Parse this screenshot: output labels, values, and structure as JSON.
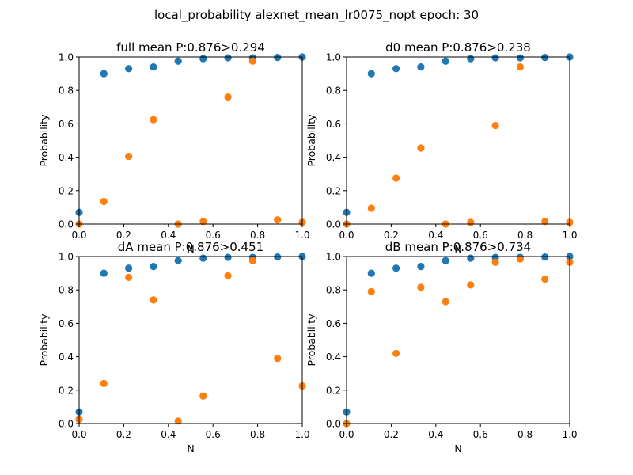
{
  "figure": {
    "suptitle": "local_probability alexnet_mean_lr0075_nopt  epoch: 30",
    "colors": {
      "series_1": "#1f77b4",
      "series_2": "#ff7f0e"
    }
  },
  "chart_data": [
    {
      "type": "scatter",
      "title": "full  mean P:0.876>0.294",
      "xlabel": "N",
      "ylabel": "Probability",
      "xlim": [
        0,
        1
      ],
      "ylim": [
        0,
        1
      ],
      "xticks": [
        "0.0",
        "0.2",
        "0.4",
        "0.6",
        "0.8",
        "1.0"
      ],
      "yticks": [
        "0.0",
        "0.2",
        "0.4",
        "0.6",
        "0.8",
        "1.0"
      ],
      "grid": false,
      "x": [
        0.0,
        0.111,
        0.222,
        0.333,
        0.444,
        0.556,
        0.667,
        0.778,
        0.889,
        1.0
      ],
      "series": [
        {
          "values": [
            0.07,
            0.9,
            0.93,
            0.94,
            0.975,
            0.99,
            0.995,
            0.995,
            0.997,
            1.0
          ]
        },
        {
          "values": [
            0.0,
            0.135,
            0.405,
            0.625,
            0.0,
            0.015,
            0.76,
            0.975,
            0.025,
            0.01
          ]
        }
      ]
    },
    {
      "type": "scatter",
      "title": "d0  mean P:0.876>0.238",
      "xlabel": "N",
      "ylabel": "Probability",
      "xlim": [
        0,
        1
      ],
      "ylim": [
        0,
        1
      ],
      "xticks": [
        "0.0",
        "0.2",
        "0.4",
        "0.6",
        "0.8",
        "1.0"
      ],
      "yticks": [
        "0.0",
        "0.2",
        "0.4",
        "0.6",
        "0.8",
        "1.0"
      ],
      "grid": false,
      "x": [
        0.0,
        0.111,
        0.222,
        0.333,
        0.444,
        0.556,
        0.667,
        0.778,
        0.889,
        1.0
      ],
      "series": [
        {
          "values": [
            0.07,
            0.9,
            0.93,
            0.94,
            0.975,
            0.99,
            0.995,
            0.995,
            0.997,
            1.0
          ]
        },
        {
          "values": [
            0.0,
            0.095,
            0.275,
            0.455,
            0.0,
            0.01,
            0.59,
            0.94,
            0.015,
            0.01
          ]
        }
      ]
    },
    {
      "type": "scatter",
      "title": "dA  mean P:0.876>0.451",
      "xlabel": "N",
      "ylabel": "Probability",
      "xlim": [
        0,
        1
      ],
      "ylim": [
        0,
        1
      ],
      "xticks": [
        "0.0",
        "0.2",
        "0.4",
        "0.6",
        "0.8",
        "1.0"
      ],
      "yticks": [
        "0.0",
        "0.2",
        "0.4",
        "0.6",
        "0.8",
        "1.0"
      ],
      "grid": false,
      "x": [
        0.0,
        0.111,
        0.222,
        0.333,
        0.444,
        0.556,
        0.667,
        0.778,
        0.889,
        1.0
      ],
      "series": [
        {
          "values": [
            0.07,
            0.9,
            0.93,
            0.94,
            0.975,
            0.99,
            0.995,
            0.995,
            0.997,
            1.0
          ]
        },
        {
          "values": [
            0.025,
            0.24,
            0.875,
            0.74,
            0.015,
            0.165,
            0.885,
            0.975,
            0.39,
            0.225
          ]
        }
      ]
    },
    {
      "type": "scatter",
      "title": "dB  mean P:0.876>0.734",
      "xlabel": "N",
      "ylabel": "Probability",
      "xlim": [
        0,
        1
      ],
      "ylim": [
        0,
        1
      ],
      "xticks": [
        "0.0",
        "0.2",
        "0.4",
        "0.6",
        "0.8",
        "1.0"
      ],
      "yticks": [
        "0.0",
        "0.2",
        "0.4",
        "0.6",
        "0.8",
        "1.0"
      ],
      "grid": false,
      "x": [
        0.0,
        0.111,
        0.222,
        0.333,
        0.444,
        0.556,
        0.667,
        0.778,
        0.889,
        1.0
      ],
      "series": [
        {
          "values": [
            0.07,
            0.9,
            0.93,
            0.94,
            0.975,
            0.99,
            0.995,
            0.995,
            0.997,
            1.0
          ]
        },
        {
          "values": [
            0.0,
            0.79,
            0.42,
            0.815,
            0.73,
            0.83,
            0.965,
            0.985,
            0.865,
            0.965
          ]
        }
      ]
    }
  ]
}
